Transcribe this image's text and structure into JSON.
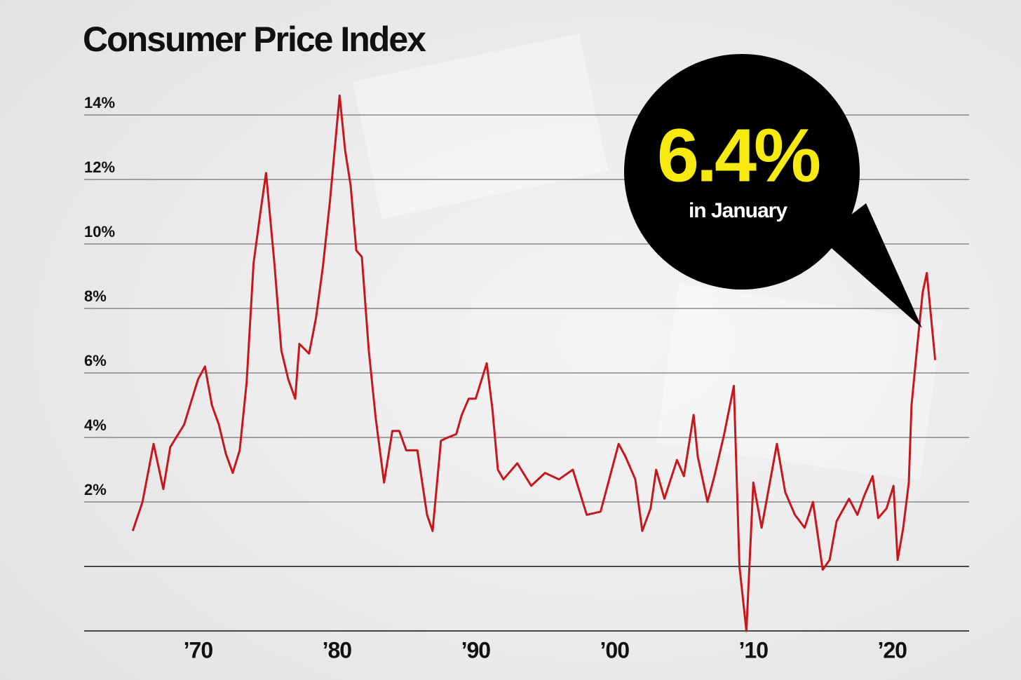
{
  "chart_data": {
    "type": "line",
    "title": "Consumer Price Index",
    "annotation": {
      "value": "6.4%",
      "text": "in January"
    },
    "x": [
      1965.3,
      1966,
      1966.8,
      1967.5,
      1968,
      1969,
      1970,
      1970.5,
      1971,
      1971.5,
      1972,
      1972.5,
      1973,
      1973.5,
      1974,
      1974.5,
      1974.9,
      1975.5,
      1976,
      1976.5,
      1977,
      1977.3,
      1978,
      1978.5,
      1979,
      1979.5,
      1980.2,
      1980.6,
      1981,
      1981.4,
      1981.8,
      1982.3,
      1982.8,
      1983.4,
      1984,
      1984.5,
      1985,
      1985.8,
      1986.5,
      1986.9,
      1987.5,
      1988,
      1988.6,
      1989,
      1989.5,
      1990,
      1990.8,
      1991.2,
      1991.6,
      1992,
      1993,
      1994,
      1995,
      1996,
      1997,
      1998,
      1999,
      2000.3,
      2000.8,
      2001.5,
      2002,
      2002.6,
      2003,
      2003.6,
      2004.5,
      2005,
      2005.7,
      2006,
      2006.7,
      2007.2,
      2007.9,
      2008.6,
      2009,
      2009.5,
      2010,
      2010.6,
      2011.7,
      2012.3,
      2013,
      2013.7,
      2014.3,
      2015,
      2015.5,
      2016,
      2016.9,
      2017.5,
      2018,
      2018.6,
      2019,
      2019.6,
      2020.1,
      2020.4,
      2020.8,
      2021.2,
      2021.4,
      2021.8,
      2022.2,
      2022.5,
      2023.1
    ],
    "values": [
      1.1,
      2.0,
      3.8,
      2.4,
      3.7,
      4.4,
      5.8,
      6.2,
      5.0,
      4.4,
      3.5,
      2.9,
      3.6,
      5.7,
      9.4,
      11.0,
      12.2,
      9.4,
      6.7,
      5.8,
      5.2,
      6.9,
      6.6,
      7.7,
      9.3,
      11.3,
      14.6,
      12.9,
      11.8,
      9.8,
      9.6,
      6.7,
      4.6,
      2.6,
      4.2,
      4.2,
      3.6,
      3.6,
      1.6,
      1.1,
      3.9,
      4.0,
      4.1,
      4.7,
      5.2,
      5.2,
      6.3,
      4.9,
      3.0,
      2.7,
      3.2,
      2.5,
      2.9,
      2.7,
      3.0,
      1.6,
      1.7,
      3.8,
      3.4,
      2.7,
      1.1,
      1.8,
      3.0,
      2.1,
      3.3,
      2.8,
      4.7,
      3.4,
      2.0,
      2.8,
      4.1,
      5.6,
      0.0,
      -2.0,
      2.6,
      1.2,
      3.8,
      2.3,
      1.6,
      1.2,
      2.0,
      -0.1,
      0.2,
      1.4,
      2.1,
      1.6,
      2.2,
      2.8,
      1.5,
      1.8,
      2.5,
      0.2,
      1.2,
      2.6,
      5.0,
      6.8,
      8.5,
      9.1,
      6.4
    ],
    "color": "#c8161d",
    "xlim": [
      1962,
      2026
    ],
    "xticks": [
      {
        "value": 1970,
        "label": "’70"
      },
      {
        "value": 1980,
        "label": "’80"
      },
      {
        "value": 1990,
        "label": "’90"
      },
      {
        "value": 2000,
        "label": "’00"
      },
      {
        "value": 2010,
        "label": "’10"
      },
      {
        "value": 2020,
        "label": "’20"
      }
    ],
    "ylim": [
      -2,
      15
    ],
    "yticks": [
      {
        "value": 14,
        "label": "14%"
      },
      {
        "value": 12,
        "label": "12%"
      },
      {
        "value": 10,
        "label": "10%"
      },
      {
        "value": 8,
        "label": "8%"
      },
      {
        "value": 6,
        "label": "6%"
      },
      {
        "value": 4,
        "label": "4%"
      },
      {
        "value": 2,
        "label": "2%"
      },
      {
        "value": 0,
        "label": null
      },
      {
        "value": -2,
        "label": null
      }
    ],
    "grid": true
  }
}
